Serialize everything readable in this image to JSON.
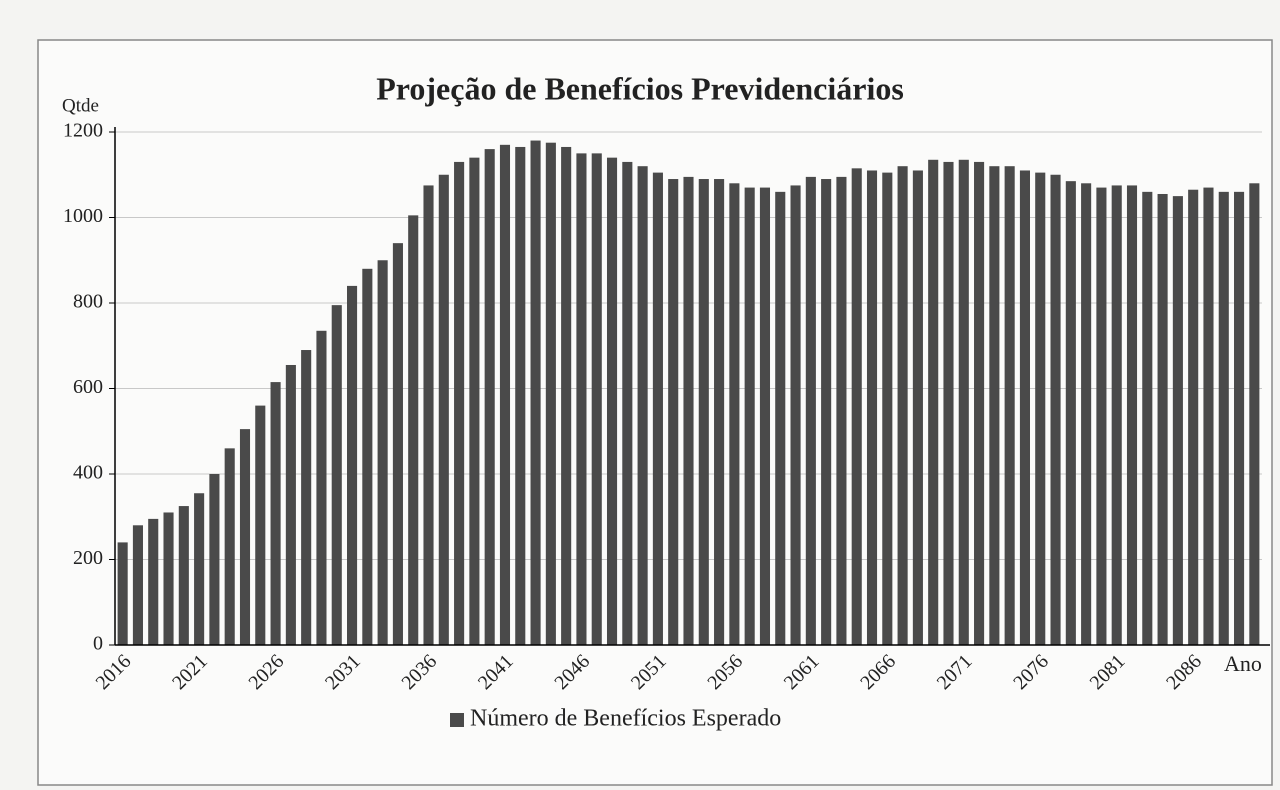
{
  "chart_data": {
    "type": "bar",
    "title": "Projeção de Benefícios Previdenciários",
    "y_axis_label": "Qtde",
    "x_axis_label": "Ano",
    "categories": [
      "2016",
      null,
      null,
      null,
      null,
      "2021",
      null,
      null,
      null,
      null,
      "2026",
      null,
      null,
      null,
      null,
      "2031",
      null,
      null,
      null,
      null,
      "2036",
      null,
      null,
      null,
      null,
      "2041",
      null,
      null,
      null,
      null,
      "2046",
      null,
      null,
      null,
      null,
      "2051",
      null,
      null,
      null,
      null,
      "2056",
      null,
      null,
      null,
      null,
      "2061",
      null,
      null,
      null,
      null,
      "2066",
      null,
      null,
      null,
      null,
      "2071",
      null,
      null,
      null,
      null,
      "2076",
      null,
      null,
      null,
      null,
      "2081",
      null,
      null,
      null,
      null,
      "2086",
      null,
      null,
      null,
      null
    ],
    "series": [
      {
        "name": "Número de Benefícios Esperado",
        "color": "#4a4a4a",
        "values": [
          240,
          280,
          295,
          310,
          325,
          355,
          400,
          460,
          505,
          560,
          615,
          655,
          690,
          735,
          795,
          840,
          880,
          900,
          940,
          1005,
          1075,
          1100,
          1130,
          1140,
          1160,
          1170,
          1165,
          1180,
          1175,
          1165,
          1150,
          1150,
          1140,
          1130,
          1120,
          1105,
          1090,
          1095,
          1090,
          1090,
          1080,
          1070,
          1070,
          1060,
          1075,
          1095,
          1090,
          1095,
          1115,
          1110,
          1105,
          1120,
          1110,
          1135,
          1130,
          1135,
          1130,
          1120,
          1120,
          1110,
          1105,
          1100,
          1085,
          1080,
          1070,
          1075,
          1075,
          1060,
          1055,
          1050,
          1065,
          1070,
          1060,
          1060,
          1080
        ]
      }
    ],
    "ylim": [
      0,
      1200
    ],
    "yticks": [
      0,
      200,
      400,
      600,
      800,
      1000,
      1200
    ],
    "grid": true,
    "legend": "bottom"
  }
}
